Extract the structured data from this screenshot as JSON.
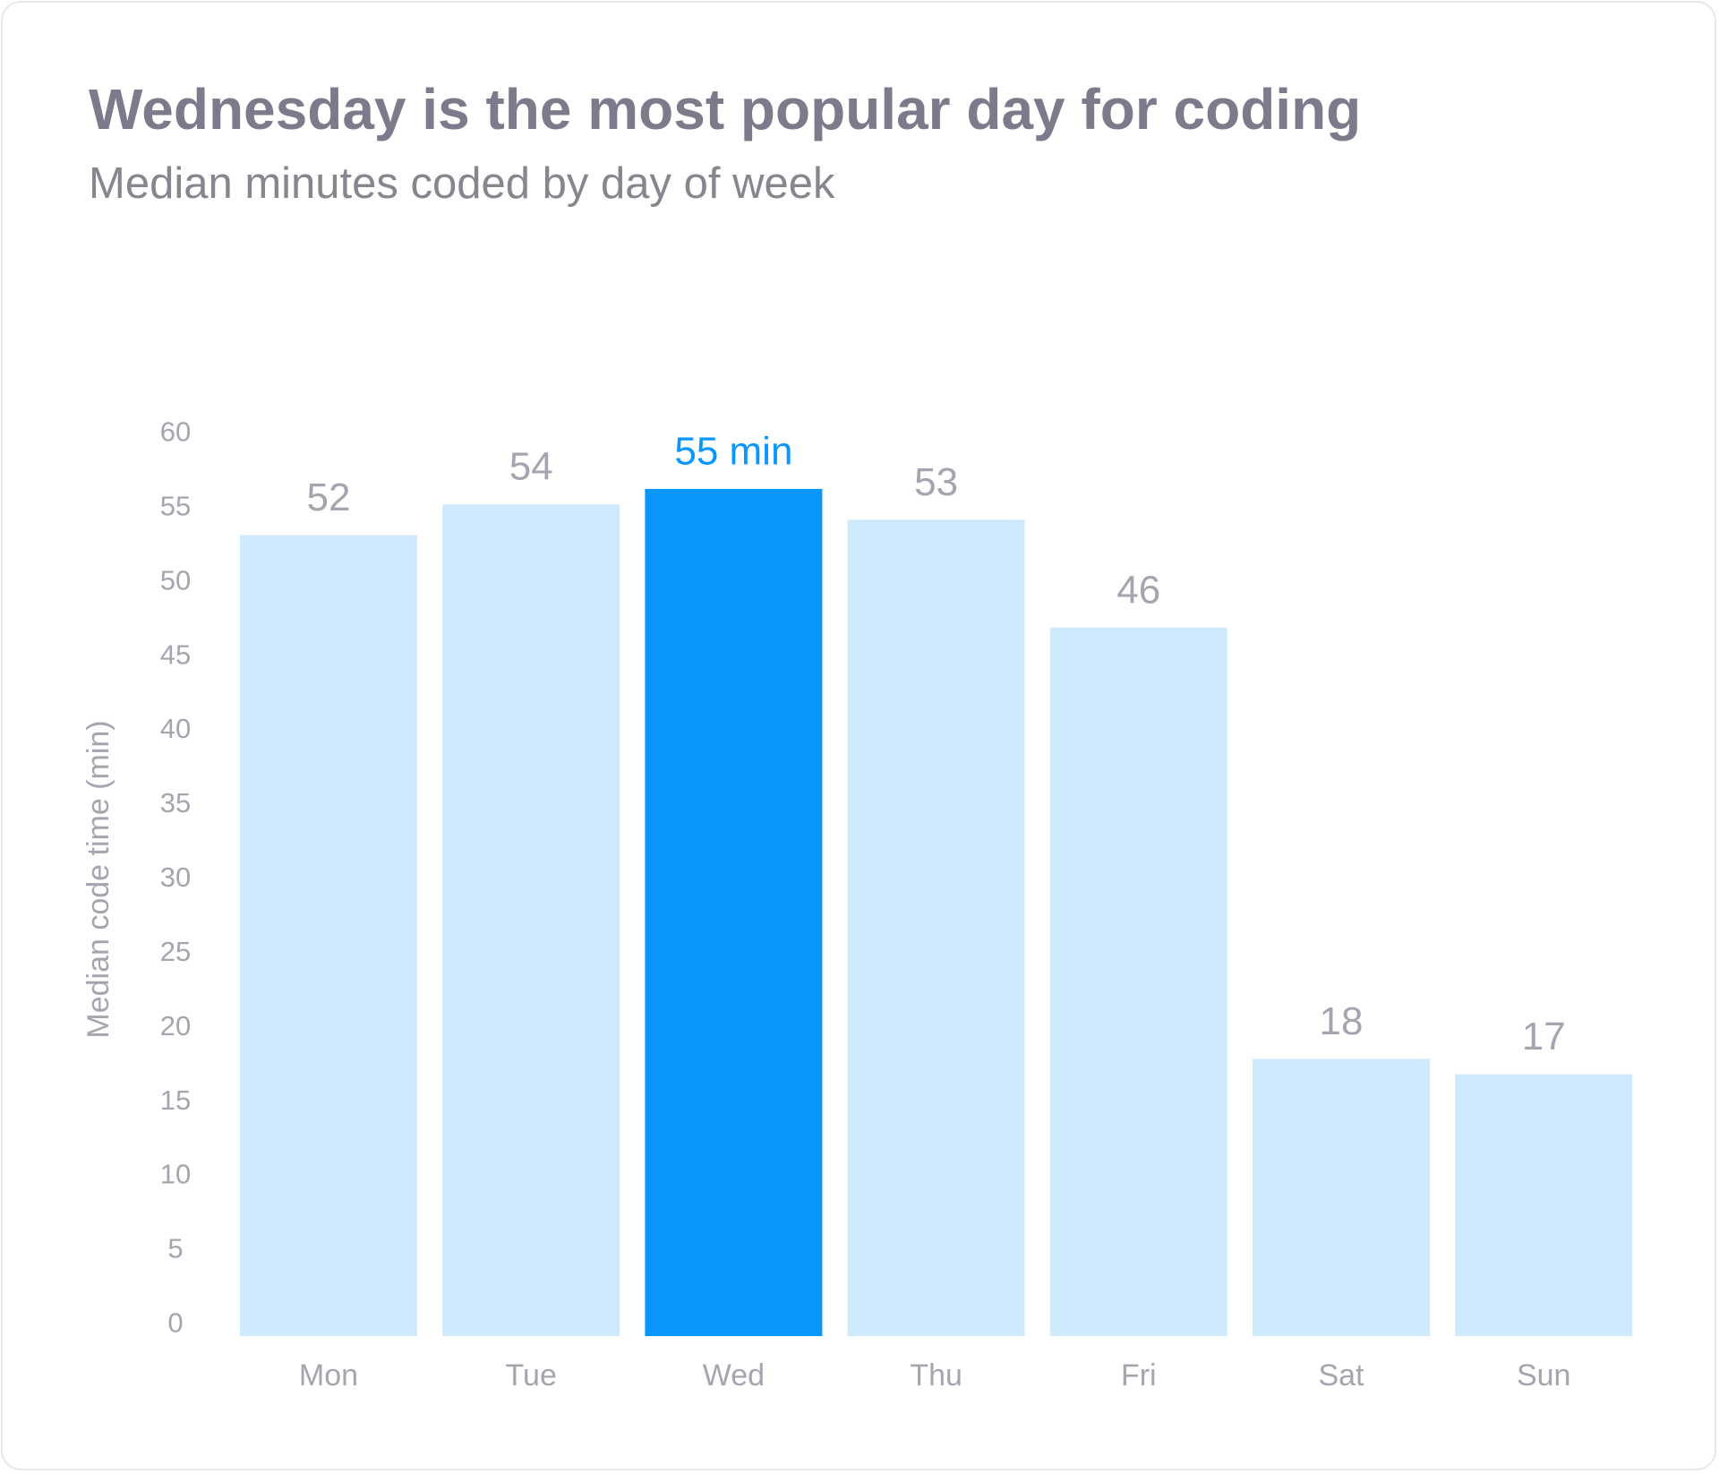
{
  "title": "Wednesday is the most popular day for coding",
  "subtitle": "Median minutes coded by day of week",
  "colors": {
    "bar": "#cfe9fd",
    "highlight": "#0996fd",
    "text": "#a5a5b0",
    "title": "#7b7b8b"
  },
  "chart_data": {
    "type": "bar",
    "title": "Wednesday is the most popular day for coding",
    "subtitle": "Median minutes coded by day of week",
    "xlabel": "",
    "ylabel": "Median code time (min)",
    "categories": [
      "Mon",
      "Tue",
      "Wed",
      "Thu",
      "Fri",
      "Sat",
      "Sun"
    ],
    "values": [
      52,
      54,
      55,
      53,
      46,
      18,
      17
    ],
    "data_labels": [
      "52",
      "54",
      "55 min",
      "53",
      "46",
      "18",
      "17"
    ],
    "highlight": "Wed",
    "ylim": [
      0,
      60
    ],
    "yticks": [
      0,
      5,
      10,
      15,
      20,
      25,
      30,
      35,
      40,
      45,
      50,
      55,
      60
    ],
    "grid": false,
    "legend": "none"
  }
}
